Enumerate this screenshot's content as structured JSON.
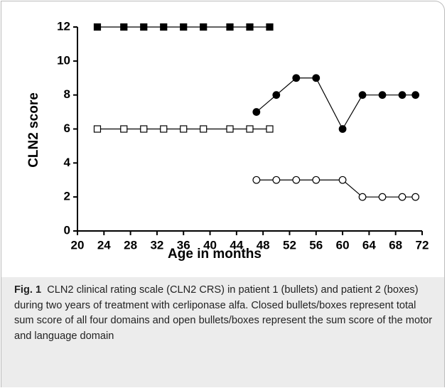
{
  "chart_data": {
    "type": "line",
    "xlabel": "Age in months",
    "ylabel": "CLN2 score",
    "xlim": [
      20,
      72
    ],
    "xticks": [
      20,
      24,
      28,
      32,
      36,
      40,
      44,
      48,
      52,
      56,
      60,
      64,
      68,
      72
    ],
    "ylim": [
      0,
      12
    ],
    "yticks": [
      0,
      2,
      4,
      6,
      8,
      10,
      12
    ],
    "series": [
      {
        "color": "#000000",
        "marker": "square",
        "filled": true,
        "x": [
          23,
          27,
          30,
          33,
          36,
          39,
          43,
          46,
          49
        ],
        "values": [
          12,
          12,
          12,
          12,
          12,
          12,
          12,
          12,
          12
        ]
      },
      {
        "color": "#000000",
        "marker": "square",
        "filled": false,
        "x": [
          23,
          27,
          30,
          33,
          36,
          39,
          43,
          46,
          49
        ],
        "values": [
          6,
          6,
          6,
          6,
          6,
          6,
          6,
          6,
          6
        ]
      },
      {
        "color": "#000000",
        "marker": "circle",
        "filled": true,
        "x": [
          47,
          50,
          53,
          56,
          60,
          63,
          66,
          69,
          71
        ],
        "values": [
          7,
          8,
          9,
          9,
          6,
          8,
          8,
          8,
          8
        ]
      },
      {
        "color": "#000000",
        "marker": "circle",
        "filled": false,
        "x": [
          47,
          50,
          53,
          56,
          60,
          63,
          66,
          69,
          71
        ],
        "values": [
          3,
          3,
          3,
          3,
          3,
          2,
          2,
          2,
          2
        ]
      }
    ]
  },
  "caption": {
    "label": "Fig. 1",
    "text": "CLN2 clinical rating scale (CLN2 CRS) in patient 1 (bullets) and patient 2 (boxes) during two years of treatment with cerliponase alfa. Closed bullets/boxes represent total sum score of all four domains and open bullets/boxes represent the sum score of the motor and language domain"
  }
}
